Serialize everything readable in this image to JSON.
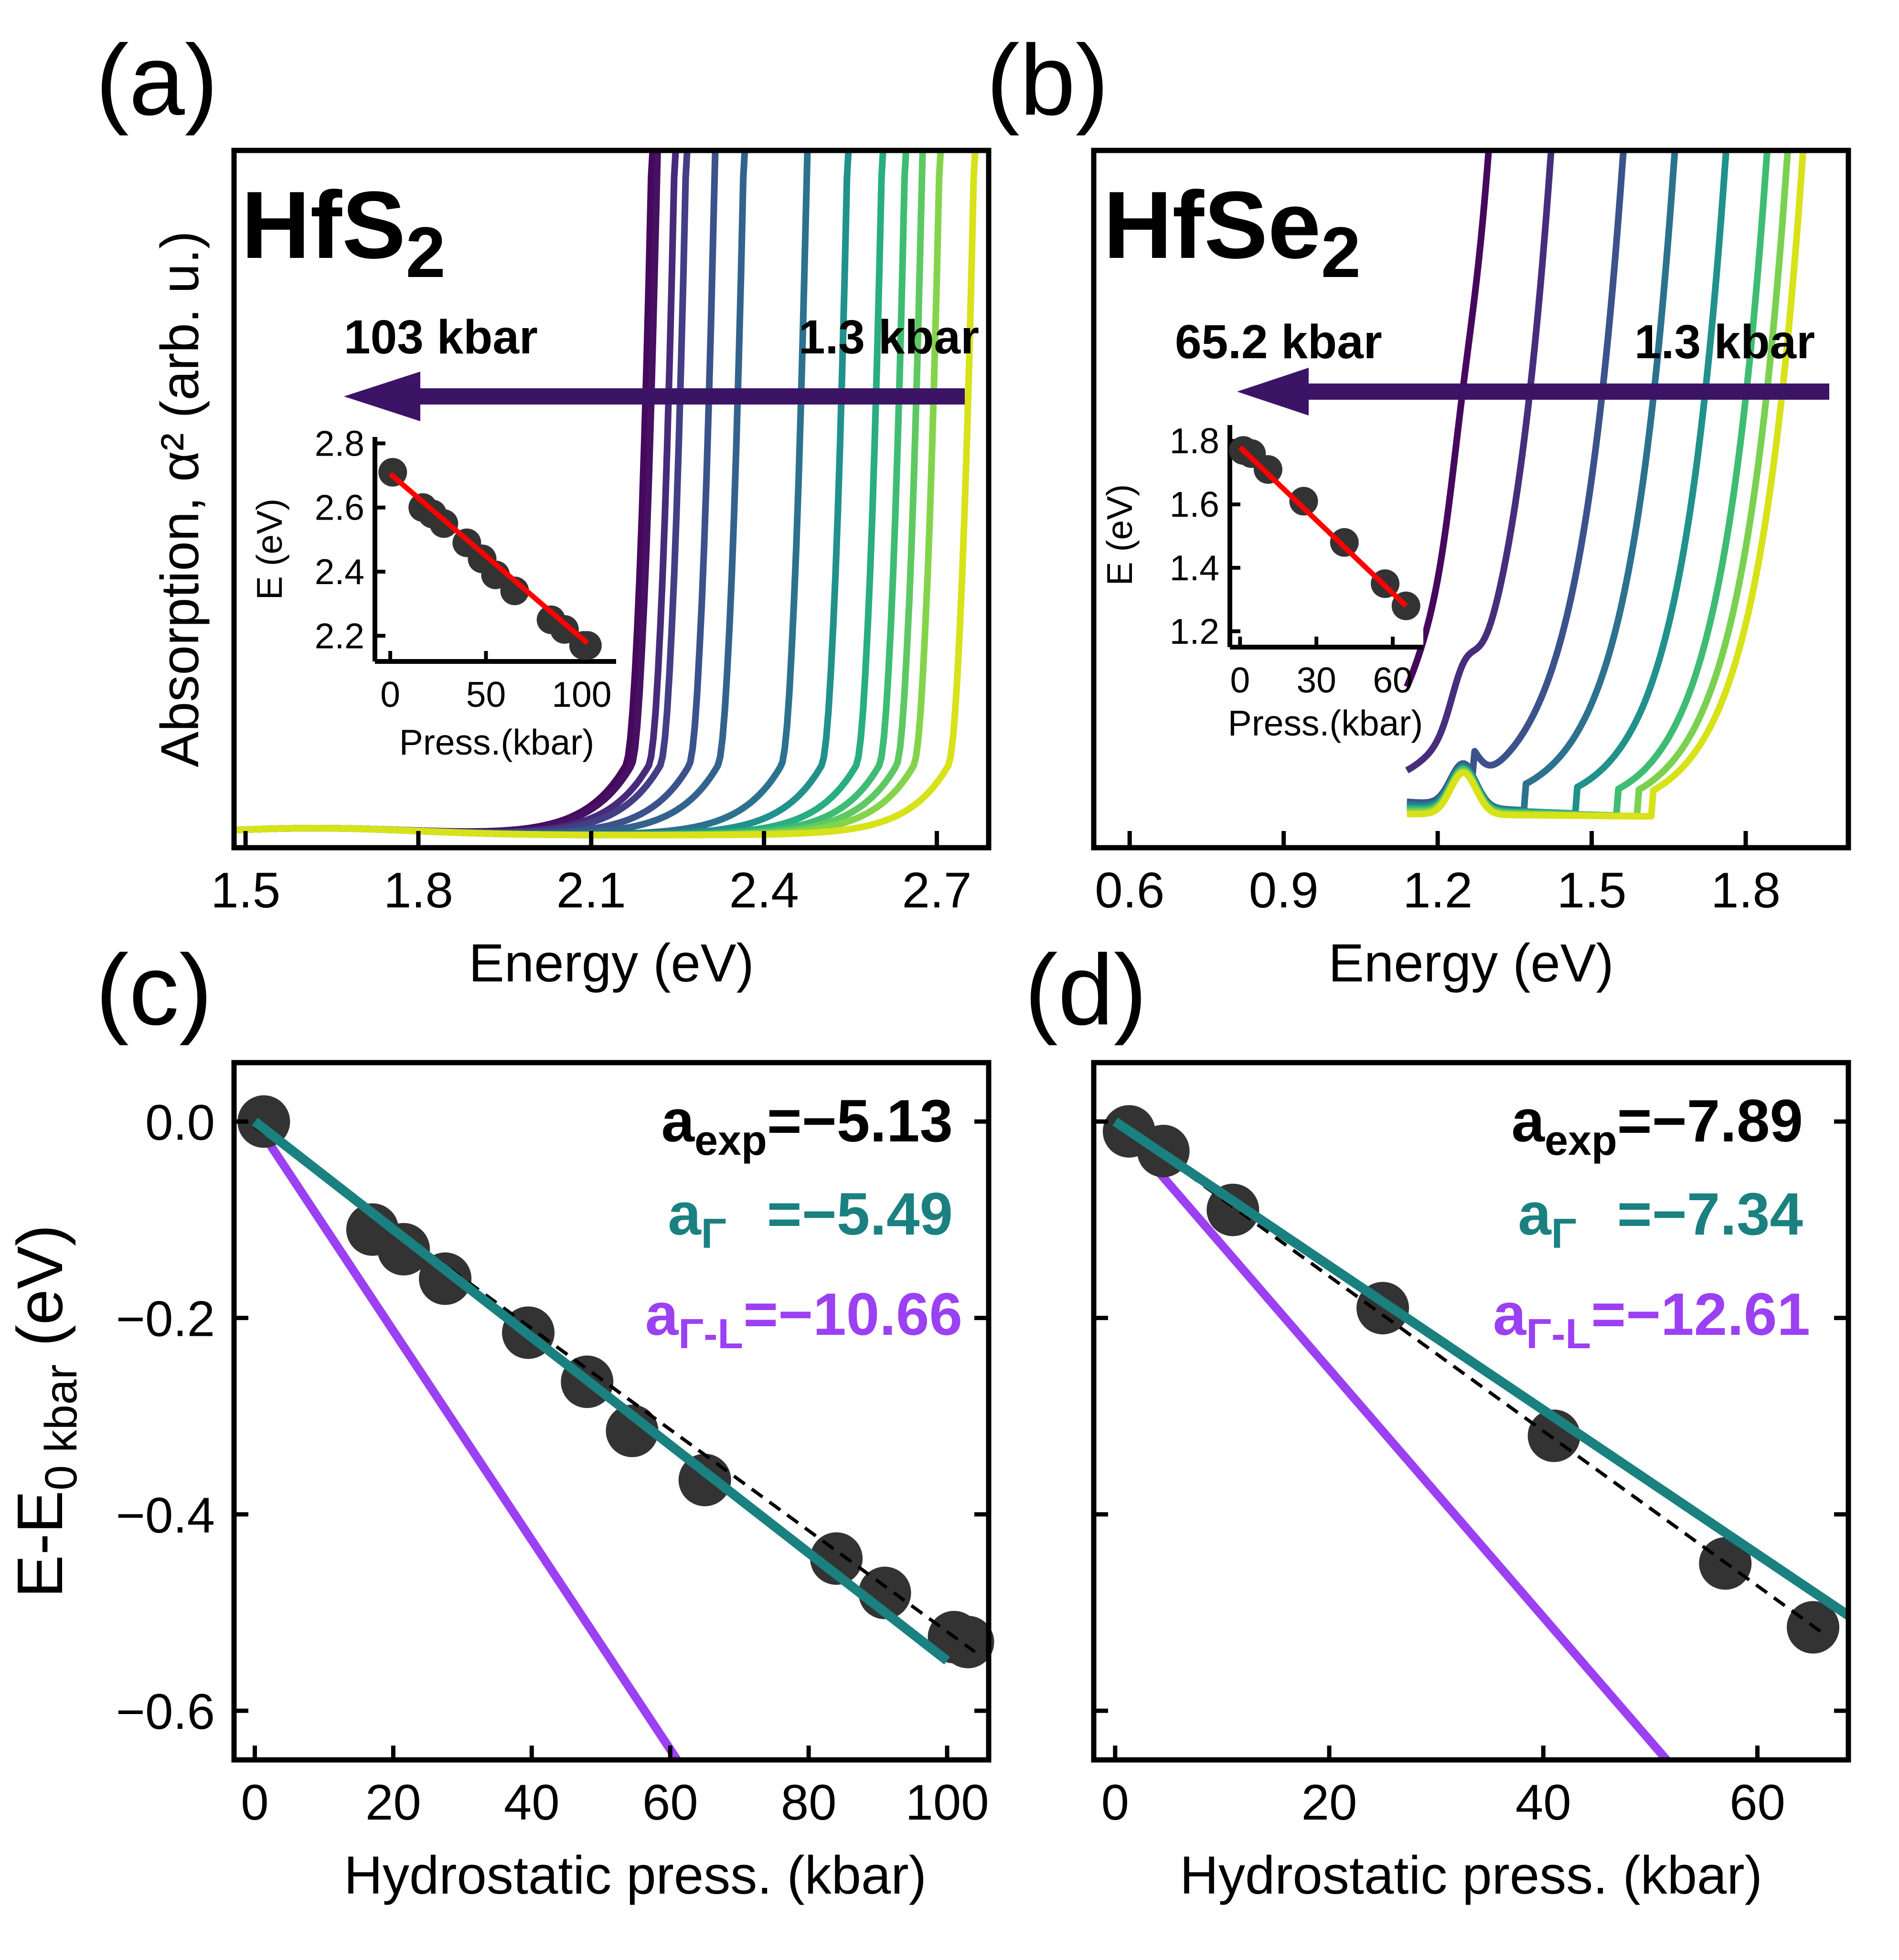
{
  "colors": {
    "axis": "#000000",
    "points": "#333333",
    "teal": "#1a8080",
    "purple": "#9b40f2",
    "fit_red": "#ff0000",
    "arrow": "#3b1466"
  },
  "chart_data": [
    {
      "panel": "a",
      "type": "line",
      "panel_label": "(a)",
      "material": "HfS",
      "material_subscript": "2",
      "ylabel": "Absorption, α² (arb. u.)",
      "xlabel": "Energy (eV)",
      "xlim": [
        1.48,
        2.79
      ],
      "xticks": [
        1.5,
        1.8,
        2.1,
        2.4,
        2.7
      ],
      "tick_labels": [
        "1.5",
        "1.8",
        "2.1",
        "2.4",
        "2.7"
      ],
      "ylim": [
        0,
        1
      ],
      "arrow_from_label": "1.3 kbar",
      "arrow_to_label": "103 kbar",
      "series": [
        {
          "pressure_kbar": 103,
          "edge_eV": 2.16,
          "color": "#46085c"
        },
        {
          "pressure_kbar": 101,
          "edge_eV": 2.17,
          "color": "#471063"
        },
        {
          "pressure_kbar": 91,
          "edge_eV": 2.2,
          "color": "#472a7a"
        },
        {
          "pressure_kbar": 84,
          "edge_eV": 2.22,
          "color": "#433e85"
        },
        {
          "pressure_kbar": 65,
          "edge_eV": 2.27,
          "color": "#3b528b"
        },
        {
          "pressure_kbar": 55,
          "edge_eV": 2.32,
          "color": "#33638d"
        },
        {
          "pressure_kbar": 40,
          "edge_eV": 2.43,
          "color": "#2c728e"
        },
        {
          "pressure_kbar": 28,
          "edge_eV": 2.5,
          "color": "#21918c"
        },
        {
          "pressure_kbar": 22,
          "edge_eV": 2.56,
          "color": "#28ae80"
        },
        {
          "pressure_kbar": 17,
          "edge_eV": 2.6,
          "color": "#3fbc73"
        },
        {
          "pressure_kbar": 10,
          "edge_eV": 2.63,
          "color": "#5ec962"
        },
        {
          "pressure_kbar": 5,
          "edge_eV": 2.66,
          "color": "#84d44b"
        },
        {
          "pressure_kbar": 1.3,
          "edge_eV": 2.72,
          "color": "#d8e219"
        }
      ],
      "inset": {
        "ylabel": "E (eV)",
        "xlabel": "Press.(kbar)",
        "xlim": [
          -8,
          118
        ],
        "ylim": [
          2.12,
          2.82
        ],
        "xticks": [
          0,
          50,
          100
        ],
        "x_tick_labels": [
          "0",
          "50",
          "100"
        ],
        "yticks": [
          2.2,
          2.4,
          2.6,
          2.8
        ],
        "y_tick_labels": [
          "2.2",
          "2.4",
          "2.6",
          "2.8"
        ],
        "points": [
          {
            "x": 1.3,
            "y": 2.71
          },
          {
            "x": 17,
            "y": 2.6
          },
          {
            "x": 22,
            "y": 2.58
          },
          {
            "x": 28,
            "y": 2.55
          },
          {
            "x": 40,
            "y": 2.49
          },
          {
            "x": 48,
            "y": 2.44
          },
          {
            "x": 55,
            "y": 2.39
          },
          {
            "x": 65,
            "y": 2.34
          },
          {
            "x": 84,
            "y": 2.25
          },
          {
            "x": 91,
            "y": 2.22
          },
          {
            "x": 101,
            "y": 2.17
          },
          {
            "x": 103,
            "y": 2.17
          }
        ],
        "fit": {
          "x": [
            0,
            103
          ],
          "y": [
            2.705,
            2.177
          ]
        }
      }
    },
    {
      "panel": "b",
      "type": "line",
      "panel_label": "(b)",
      "material": "HfSe",
      "material_subscript": "2",
      "xlabel": "Energy (eV)",
      "xlim": [
        0.53,
        2.0
      ],
      "xticks": [
        0.6,
        0.9,
        1.2,
        1.5,
        1.8
      ],
      "tick_labels": [
        "0.6",
        "0.9",
        "1.2",
        "1.5",
        "1.8"
      ],
      "ylim": [
        0,
        1
      ],
      "data_start_eV": 1.14,
      "arrow_from_label": "1.3 kbar",
      "arrow_to_label": "65.2 kbar",
      "series": [
        {
          "pressure_kbar": 65.2,
          "edge_eV": 1.26,
          "color": "#46085c"
        },
        {
          "pressure_kbar": 57,
          "edge_eV": 1.38,
          "color": "#472e7c"
        },
        {
          "pressure_kbar": 41,
          "edge_eV": 1.52,
          "color": "#3b528b"
        },
        {
          "pressure_kbar": 25,
          "edge_eV": 1.62,
          "color": "#2c728e"
        },
        {
          "pressure_kbar": 11,
          "edge_eV": 1.72,
          "color": "#21918c"
        },
        {
          "pressure_kbar": 5,
          "edge_eV": 1.8,
          "color": "#3fbc73"
        },
        {
          "pressure_kbar": 3,
          "edge_eV": 1.84,
          "color": "#7ad151"
        },
        {
          "pressure_kbar": 1.3,
          "edge_eV": 1.87,
          "color": "#d8e219"
        }
      ],
      "inset": {
        "ylabel": "E (eV)",
        "xlabel": "Press.(kbar)",
        "xlim": [
          -4,
          72
        ],
        "ylim": [
          1.15,
          1.85
        ],
        "xticks": [
          0,
          30,
          60
        ],
        "x_tick_labels": [
          "0",
          "30",
          "60"
        ],
        "yticks": [
          1.2,
          1.4,
          1.6,
          1.8
        ],
        "y_tick_labels": [
          "1.2",
          "1.4",
          "1.6",
          "1.8"
        ],
        "points": [
          {
            "x": 1.3,
            "y": 1.77
          },
          {
            "x": 4.5,
            "y": 1.76
          },
          {
            "x": 11,
            "y": 1.71
          },
          {
            "x": 25,
            "y": 1.61
          },
          {
            "x": 41,
            "y": 1.48
          },
          {
            "x": 57,
            "y": 1.35
          },
          {
            "x": 65.2,
            "y": 1.28
          }
        ],
        "fit": {
          "x": [
            0,
            65.2
          ],
          "y": [
            1.78,
            1.28
          ]
        }
      }
    },
    {
      "panel": "c",
      "type": "scatter",
      "panel_label": "(c)",
      "xlabel": "Hydrostatic press. (kbar)",
      "ylabel": "E-E",
      "ylabel_sub": "0 kbar",
      "ylabel_tail": " (eV)",
      "xlim": [
        -3,
        106
      ],
      "ylim": [
        -0.65,
        0.06
      ],
      "xticks": [
        0,
        20,
        40,
        60,
        80,
        100
      ],
      "x_tick_labels": [
        "0",
        "20",
        "40",
        "60",
        "80",
        "100"
      ],
      "yticks": [
        0.0,
        -0.2,
        -0.4,
        -0.6
      ],
      "y_tick_labels": [
        "0.0",
        "−0.2",
        "−0.4",
        "−0.6"
      ],
      "points": [
        {
          "x": 1.3,
          "y": 0.0
        },
        {
          "x": 17,
          "y": -0.11
        },
        {
          "x": 21.5,
          "y": -0.13
        },
        {
          "x": 27.5,
          "y": -0.16
        },
        {
          "x": 39.5,
          "y": -0.215
        },
        {
          "x": 48,
          "y": -0.265
        },
        {
          "x": 54.5,
          "y": -0.315
        },
        {
          "x": 65,
          "y": -0.365
        },
        {
          "x": 84,
          "y": -0.445
        },
        {
          "x": 91,
          "y": -0.48
        },
        {
          "x": 101,
          "y": -0.525
        },
        {
          "x": 103,
          "y": -0.53
        }
      ],
      "lines": [
        {
          "name": "a_exp fit",
          "style": "dashed",
          "x": [
            0,
            104
          ],
          "y": [
            -0.005,
            -0.54
          ]
        },
        {
          "name": "a_Γ",
          "style": "teal",
          "x": [
            0,
            100
          ],
          "y": [
            0.0,
            -0.549
          ]
        },
        {
          "name": "a_Γ-L",
          "style": "purple",
          "x": [
            0,
            61.1
          ],
          "y": [
            0.0,
            -0.651
          ]
        }
      ],
      "annotations": {
        "a_exp_label": "a",
        "a_exp_sub": "exp",
        "a_exp_value": "=−5.13",
        "a_gamma_label": "a",
        "a_gamma_sub": "Γ",
        "a_gamma_value": "=−5.49",
        "a_gl_label": "a",
        "a_gl_sub": "Γ-L",
        "a_gl_value": "=−10.66"
      }
    },
    {
      "panel": "d",
      "type": "scatter",
      "panel_label": "(d)",
      "xlabel": "Hydrostatic press. (kbar)",
      "xlim": [
        -2,
        68.5
      ],
      "ylim": [
        -0.65,
        0.06
      ],
      "xticks": [
        0,
        20,
        40,
        60
      ],
      "x_tick_labels": [
        "0",
        "20",
        "40",
        "60"
      ],
      "yticks": [
        0.0,
        -0.2,
        -0.4,
        -0.6
      ],
      "points": [
        {
          "x": 1.3,
          "y": -0.01
        },
        {
          "x": 4.5,
          "y": -0.03
        },
        {
          "x": 11,
          "y": -0.09
        },
        {
          "x": 25,
          "y": -0.19
        },
        {
          "x": 41,
          "y": -0.32
        },
        {
          "x": 57,
          "y": -0.45
        },
        {
          "x": 65.2,
          "y": -0.515
        }
      ],
      "lines": [
        {
          "name": "a_exp fit",
          "style": "dashed",
          "x": [
            0,
            66
          ],
          "y": [
            0.0,
            -0.52
          ]
        },
        {
          "name": "a_Γ",
          "style": "teal",
          "x": [
            0,
            68.5
          ],
          "y": [
            0.0,
            -0.503
          ]
        },
        {
          "name": "a_Γ-L",
          "style": "purple",
          "x": [
            0,
            51.6
          ],
          "y": [
            0.0,
            -0.651
          ]
        }
      ],
      "annotations": {
        "a_exp_label": "a",
        "a_exp_sub": "exp",
        "a_exp_value": "=−7.89",
        "a_gamma_label": "a",
        "a_gamma_sub": "Γ",
        "a_gamma_value": "=−7.34",
        "a_gl_label": "a",
        "a_gl_sub": "Γ-L",
        "a_gl_value": "=−12.61"
      }
    }
  ]
}
